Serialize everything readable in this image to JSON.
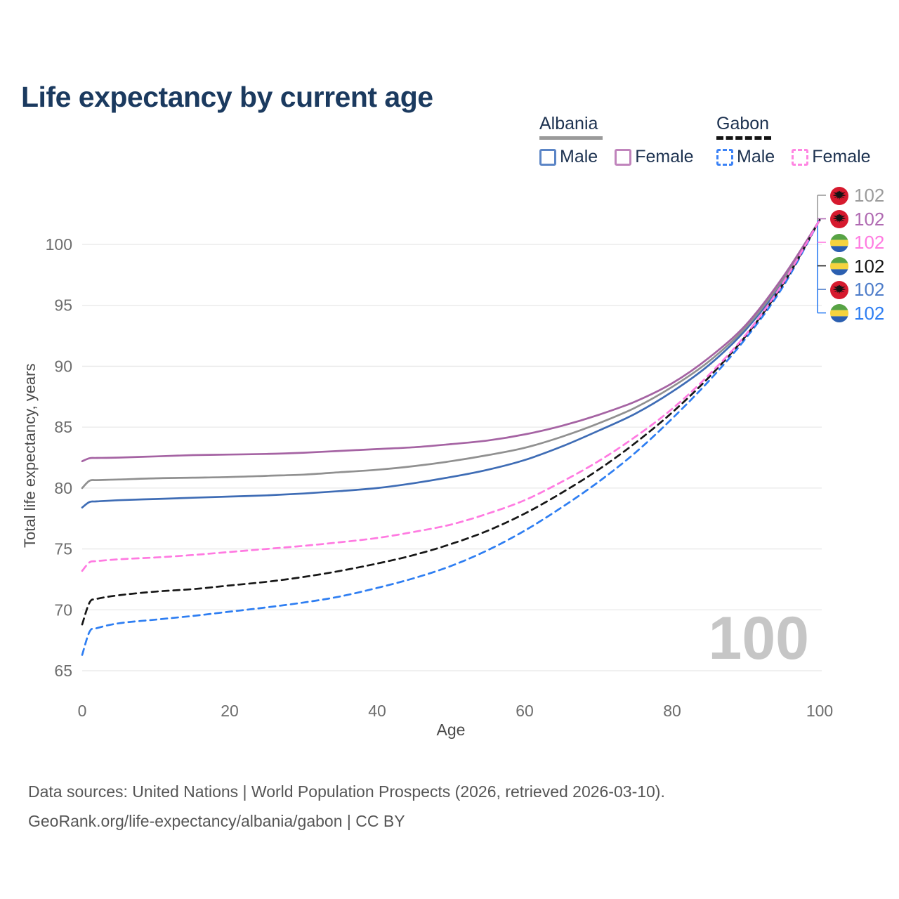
{
  "page": {
    "title": "Life expectancy by current age",
    "watermark": "100"
  },
  "legend": {
    "groups": [
      {
        "country": "Albania",
        "underline_color": "#9a9a9a",
        "underline_style": "solid",
        "items": [
          {
            "label": "Male",
            "color": "#5b85c6",
            "dash": false
          },
          {
            "label": "Female",
            "color": "#c084bc",
            "dash": false
          }
        ]
      },
      {
        "country": "Gabon",
        "underline_color": "#141414",
        "underline_style": "dashed",
        "items": [
          {
            "label": "Male",
            "color": "#3b82f6",
            "dash": true
          },
          {
            "label": "Female",
            "color": "#ff85e2",
            "dash": true
          }
        ]
      }
    ]
  },
  "chart_data": {
    "type": "line",
    "title": "Life expectancy by current age",
    "xlabel": "Age",
    "ylabel": "Total life expectancy, years",
    "xlim": [
      0,
      100
    ],
    "ylim": [
      65,
      102
    ],
    "xticks": [
      0,
      20,
      40,
      60,
      80,
      100
    ],
    "yticks": [
      65,
      70,
      75,
      80,
      85,
      90,
      95,
      100
    ],
    "grid": "horizontal",
    "legend_position": "top-right",
    "x": [
      0,
      1,
      2,
      5,
      10,
      15,
      20,
      25,
      30,
      35,
      40,
      45,
      50,
      55,
      60,
      65,
      70,
      75,
      80,
      85,
      90,
      95,
      100
    ],
    "series": [
      {
        "id": "albania_male",
        "name": "Albania Male",
        "country": "Albania",
        "sex": "male",
        "color": "#3e6cb5",
        "dash": false,
        "values": [
          78.4,
          78.85,
          78.9,
          79.0,
          79.1,
          79.2,
          79.3,
          79.4,
          79.55,
          79.75,
          80.0,
          80.4,
          80.9,
          81.5,
          82.3,
          83.4,
          84.7,
          86.1,
          87.9,
          90.1,
          93.0,
          96.9,
          102
        ]
      },
      {
        "id": "albania_total",
        "name": "Albania Both sexes",
        "country": "Albania",
        "sex": "both",
        "color": "#909090",
        "dash": false,
        "values": [
          80.0,
          80.6,
          80.65,
          80.7,
          80.8,
          80.85,
          80.9,
          81.0,
          81.1,
          81.3,
          81.5,
          81.8,
          82.2,
          82.7,
          83.3,
          84.2,
          85.3,
          86.6,
          88.3,
          90.4,
          93.2,
          97.1,
          102
        ]
      },
      {
        "id": "albania_female",
        "name": "Albania Female",
        "country": "Albania",
        "sex": "female",
        "color": "#a563a3",
        "dash": false,
        "values": [
          82.2,
          82.45,
          82.47,
          82.5,
          82.6,
          82.7,
          82.75,
          82.8,
          82.9,
          83.05,
          83.2,
          83.35,
          83.6,
          83.9,
          84.4,
          85.1,
          86.0,
          87.1,
          88.6,
          90.7,
          93.4,
          97.3,
          102
        ]
      },
      {
        "id": "gabon_male",
        "name": "Gabon Male",
        "country": "Gabon",
        "sex": "male",
        "color": "#2e7ef2",
        "dash": true,
        "values": [
          66.3,
          68.2,
          68.5,
          68.9,
          69.2,
          69.5,
          69.85,
          70.2,
          70.6,
          71.1,
          71.8,
          72.6,
          73.6,
          74.9,
          76.5,
          78.4,
          80.5,
          82.9,
          85.7,
          88.8,
          92.3,
          96.5,
          102
        ]
      },
      {
        "id": "gabon_total",
        "name": "Gabon Both sexes",
        "country": "Gabon",
        "sex": "both",
        "color": "#161616",
        "dash": true,
        "values": [
          68.8,
          70.6,
          70.9,
          71.2,
          71.5,
          71.7,
          72.0,
          72.3,
          72.7,
          73.2,
          73.8,
          74.5,
          75.4,
          76.5,
          77.9,
          79.6,
          81.5,
          83.7,
          86.2,
          89.1,
          92.5,
          96.7,
          102
        ]
      },
      {
        "id": "gabon_female",
        "name": "Gabon Female",
        "country": "Gabon",
        "sex": "female",
        "color": "#ff7ae1",
        "dash": true,
        "values": [
          73.2,
          73.9,
          74.0,
          74.15,
          74.3,
          74.5,
          74.75,
          75.0,
          75.25,
          75.55,
          75.9,
          76.4,
          77.0,
          77.9,
          79.0,
          80.5,
          82.2,
          84.2,
          86.5,
          89.3,
          92.6,
          96.8,
          102
        ]
      }
    ],
    "end_labels": [
      {
        "series": "albania_total",
        "flag": "albania",
        "value": "102",
        "color": "#9b9b9b"
      },
      {
        "series": "albania_female",
        "flag": "albania",
        "value": "102",
        "color": "#b06ab2"
      },
      {
        "series": "gabon_female",
        "flag": "gabon",
        "value": "102",
        "color": "#ff7ae1"
      },
      {
        "series": "gabon_total",
        "flag": "gabon",
        "value": "102",
        "color": "#141414"
      },
      {
        "series": "albania_male",
        "flag": "albania",
        "value": "102",
        "color": "#4d7cc9"
      },
      {
        "series": "gabon_male",
        "flag": "gabon",
        "value": "102",
        "color": "#2e7ef2"
      }
    ],
    "flag_colors": {
      "albania_red": "#d61a2e",
      "albania_eagle": "#141414",
      "gabon_green": "#57a345",
      "gabon_yellow": "#f5d33e",
      "gabon_blue": "#2b5fb0"
    }
  },
  "footer": {
    "line1": "Data sources: United Nations | World Population Prospects (2026, retrieved 2026-03-10).",
    "line2": "GeoRank.org/life-expectancy/albania/gabon | CC BY"
  }
}
